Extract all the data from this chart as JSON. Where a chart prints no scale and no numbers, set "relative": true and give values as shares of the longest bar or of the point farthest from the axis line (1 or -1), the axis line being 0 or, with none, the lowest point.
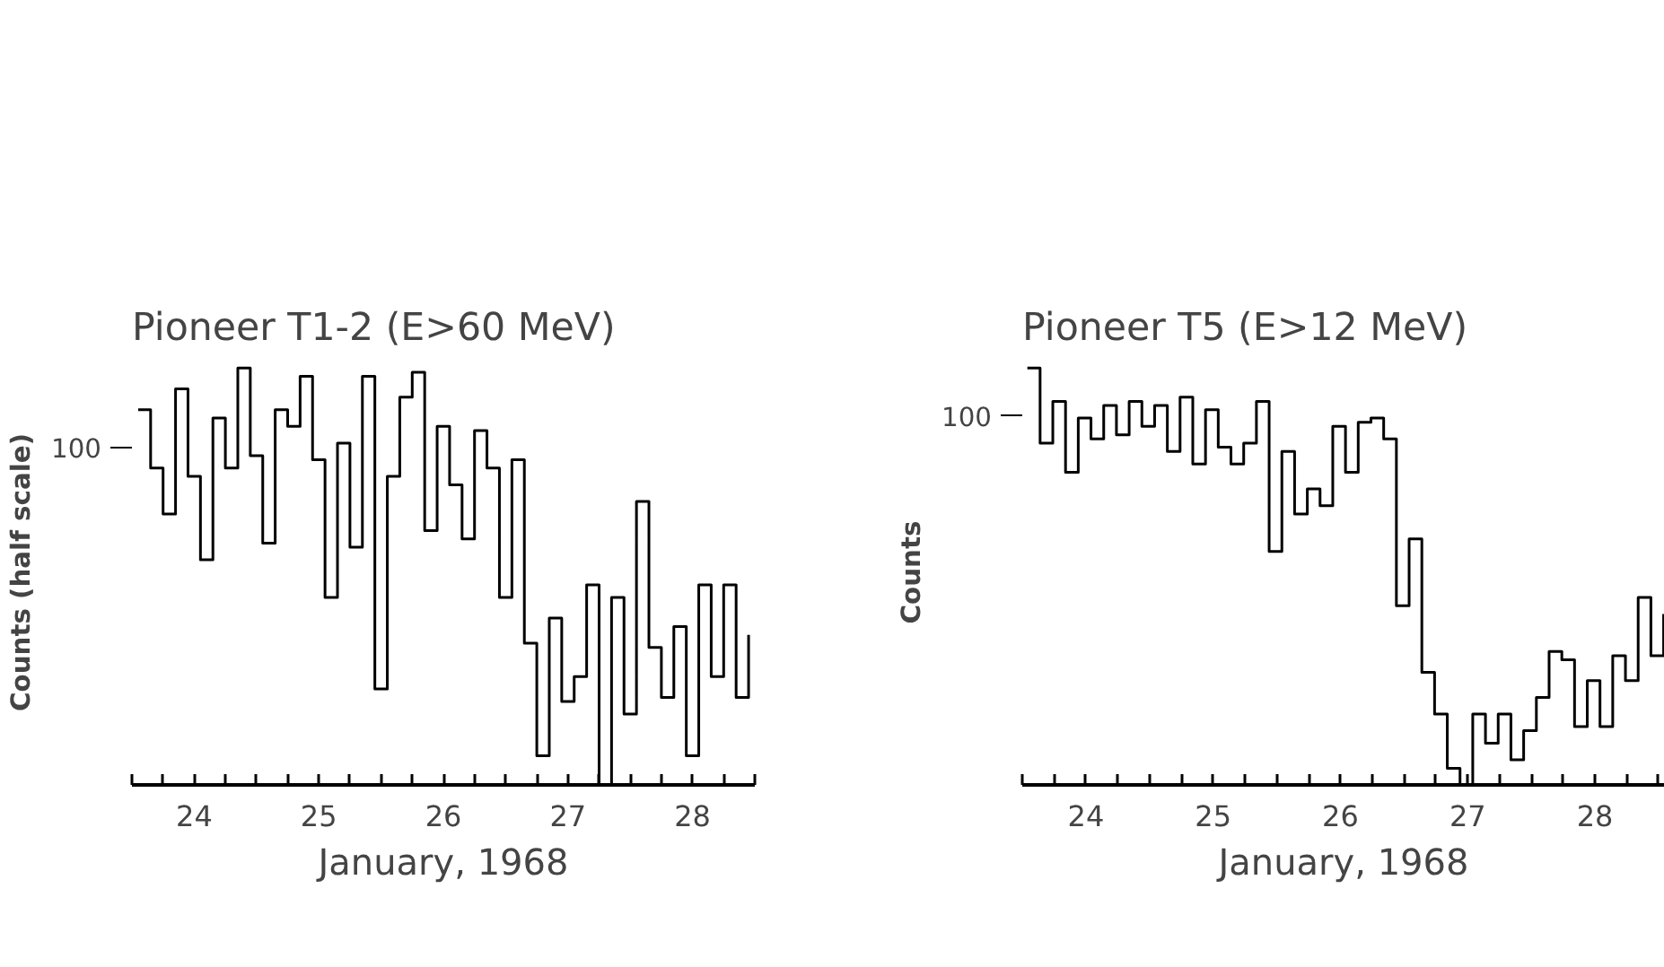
{
  "chart_data": [
    {
      "type": "step",
      "title": "Pioneer T1-2 (E>60 MeV)",
      "xlabel": "January, 1968",
      "ylabel": "Counts (half scale)",
      "relative": true,
      "tick_labels": "x",
      "x": [
        23.55,
        23.65,
        23.75,
        23.85,
        23.95,
        24.05,
        24.15,
        24.25,
        24.35,
        24.45,
        24.55,
        24.65,
        24.75,
        24.85,
        24.95,
        25.05,
        25.15,
        25.25,
        25.35,
        25.45,
        25.55,
        25.65,
        25.75,
        25.85,
        25.95,
        26.05,
        26.15,
        26.25,
        26.35,
        26.45,
        26.55,
        26.65,
        26.75,
        26.85,
        26.95,
        27.05,
        27.15,
        27.25,
        27.35,
        27.45,
        27.55,
        27.65,
        27.75,
        27.85,
        27.95,
        28.05,
        28.15,
        28.25,
        28.35,
        28.45
      ],
      "series": [
        {
          "color": "#000000",
          "values": [
            0.9,
            0.76,
            0.65,
            0.95,
            0.74,
            0.54,
            0.88,
            0.76,
            1.0,
            0.79,
            0.58,
            0.9,
            0.86,
            0.98,
            0.78,
            0.45,
            0.82,
            0.57,
            0.98,
            0.23,
            0.74,
            0.93,
            0.99,
            0.61,
            0.86,
            0.72,
            0.59,
            0.85,
            0.76,
            0.45,
            0.78,
            0.34,
            0.07,
            0.4,
            0.2,
            0.26,
            0.48,
            0.0,
            0.45,
            0.17,
            0.68,
            0.33,
            0.21,
            0.38,
            0.07,
            0.48,
            0.26,
            0.48,
            0.21,
            0.36
          ]
        }
      ],
      "xlim": [
        23.5,
        28.5
      ],
      "xticks": [
        24,
        25,
        26,
        27,
        28
      ],
      "annotations": [
        "100"
      ]
    },
    {
      "type": "step",
      "title": "Pioneer T5 (E>12 MeV)",
      "xlabel": "January, 1968",
      "ylabel": "Counts",
      "relative": true,
      "tick_labels": "x",
      "x": [
        23.54,
        23.64,
        23.74,
        23.84,
        23.94,
        24.04,
        24.14,
        24.24,
        24.34,
        24.44,
        24.54,
        24.64,
        24.74,
        24.84,
        24.94,
        25.04,
        25.14,
        25.24,
        25.34,
        25.44,
        25.54,
        25.64,
        25.74,
        25.84,
        25.94,
        26.04,
        26.14,
        26.24,
        26.34,
        26.44,
        26.54,
        26.64,
        26.74,
        26.84,
        26.94,
        27.04,
        27.14,
        27.24,
        27.34,
        27.44,
        27.54,
        27.64,
        27.74,
        27.84,
        27.94,
        28.04,
        28.14,
        28.24,
        28.34,
        28.44,
        28.54
      ],
      "series": [
        {
          "color": "#000000",
          "values": [
            1.0,
            0.82,
            0.92,
            0.75,
            0.88,
            0.83,
            0.91,
            0.84,
            0.92,
            0.86,
            0.91,
            0.8,
            0.93,
            0.77,
            0.9,
            0.81,
            0.77,
            0.82,
            0.92,
            0.56,
            0.8,
            0.65,
            0.71,
            0.67,
            0.86,
            0.75,
            0.87,
            0.88,
            0.83,
            0.43,
            0.59,
            0.27,
            0.17,
            0.04,
            0.0,
            0.17,
            0.1,
            0.17,
            0.06,
            0.13,
            0.21,
            0.32,
            0.3,
            0.14,
            0.25,
            0.14,
            0.31,
            0.25,
            0.45,
            0.31,
            0.41
          ]
        }
      ],
      "xlim": [
        23.5,
        28.55
      ],
      "xticks": [
        24,
        25,
        26,
        27,
        28
      ],
      "annotations": [
        "100"
      ]
    }
  ]
}
